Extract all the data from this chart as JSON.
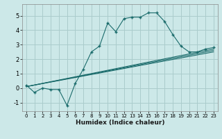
{
  "xlabel": "Humidex (Indice chaleur)",
  "ylabel": "",
  "bg_color": "#cce8e8",
  "grid_color": "#aacccc",
  "line_color": "#1a6b6b",
  "xlim": [
    -0.5,
    23.5
  ],
  "ylim": [
    -1.6,
    5.8
  ],
  "xticks": [
    0,
    1,
    2,
    3,
    4,
    5,
    6,
    7,
    8,
    9,
    10,
    11,
    12,
    13,
    14,
    15,
    16,
    17,
    18,
    19,
    20,
    21,
    22,
    23
  ],
  "yticks": [
    -1,
    0,
    1,
    2,
    3,
    4,
    5
  ],
  "lines": [
    {
      "x": [
        0,
        1,
        2,
        3,
        4,
        5,
        6,
        7,
        8,
        9,
        10,
        11,
        12,
        13,
        14,
        15,
        16,
        17,
        18,
        19,
        20,
        21,
        22,
        23
      ],
      "y": [
        0.2,
        -0.3,
        0.0,
        -0.1,
        -0.1,
        -1.2,
        0.3,
        1.3,
        2.5,
        2.9,
        4.5,
        3.9,
        4.8,
        4.9,
        4.9,
        5.2,
        5.2,
        4.6,
        3.7,
        2.9,
        2.5,
        2.5,
        2.7,
        2.8
      ],
      "has_markers": true
    },
    {
      "x": [
        0,
        23
      ],
      "y": [
        0.1,
        2.7
      ],
      "has_markers": false
    },
    {
      "x": [
        0,
        23
      ],
      "y": [
        0.1,
        2.5
      ],
      "has_markers": false
    },
    {
      "x": [
        0,
        23
      ],
      "y": [
        0.1,
        2.6
      ],
      "has_markers": false
    }
  ],
  "figsize": [
    3.2,
    2.0
  ],
  "dpi": 100
}
